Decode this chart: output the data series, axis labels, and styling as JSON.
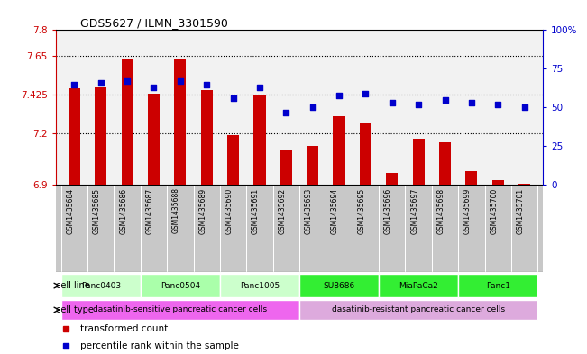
{
  "title": "GDS5627 / ILMN_3301590",
  "samples": [
    "GSM1435684",
    "GSM1435685",
    "GSM1435686",
    "GSM1435687",
    "GSM1435688",
    "GSM1435689",
    "GSM1435690",
    "GSM1435691",
    "GSM1435692",
    "GSM1435693",
    "GSM1435694",
    "GSM1435695",
    "GSM1435696",
    "GSM1435697",
    "GSM1435698",
    "GSM1435699",
    "GSM1435700",
    "GSM1435701"
  ],
  "transformed_count": [
    7.46,
    7.47,
    7.63,
    7.43,
    7.63,
    7.45,
    7.19,
    7.42,
    7.1,
    7.13,
    7.3,
    7.26,
    6.97,
    7.17,
    7.15,
    6.98,
    6.93,
    6.91
  ],
  "percentile_rank": [
    65,
    66,
    67,
    63,
    67,
    65,
    56,
    63,
    47,
    50,
    58,
    59,
    53,
    52,
    55,
    53,
    52,
    50
  ],
  "ylim_left": [
    6.9,
    7.8
  ],
  "ylim_right": [
    0,
    100
  ],
  "yticks_left": [
    6.9,
    7.2,
    7.425,
    7.65,
    7.8
  ],
  "yticks_left_labels": [
    "6.9",
    "7.2",
    "7.425",
    "7.65",
    "7.8"
  ],
  "yticks_right": [
    0,
    25,
    50,
    75,
    100
  ],
  "yticks_right_labels": [
    "0",
    "25",
    "50",
    "75",
    "100%"
  ],
  "bar_color": "#cc0000",
  "dot_color": "#0000cc",
  "cell_lines": [
    {
      "label": "Panc0403",
      "start": 0,
      "end": 2,
      "color": "#ccffcc"
    },
    {
      "label": "Panc0504",
      "start": 3,
      "end": 5,
      "color": "#aaffaa"
    },
    {
      "label": "Panc1005",
      "start": 6,
      "end": 8,
      "color": "#ccffcc"
    },
    {
      "label": "SU8686",
      "start": 9,
      "end": 11,
      "color": "#33ee33"
    },
    {
      "label": "MiaPaCa2",
      "start": 12,
      "end": 14,
      "color": "#33ee33"
    },
    {
      "label": "Panc1",
      "start": 15,
      "end": 17,
      "color": "#33ee33"
    }
  ],
  "cell_types": [
    {
      "label": "dasatinib-sensitive pancreatic cancer cells",
      "start": 0,
      "end": 8,
      "color": "#ee66ee"
    },
    {
      "label": "dasatinib-resistant pancreatic cancer cells",
      "start": 9,
      "end": 17,
      "color": "#ddaadd"
    }
  ],
  "legend_items": [
    {
      "label": "transformed count",
      "color": "#cc0000"
    },
    {
      "label": "percentile rank within the sample",
      "color": "#0000cc"
    }
  ],
  "bar_width": 0.45,
  "background_color": "#ffffff",
  "plot_bg": "#f2f2f2",
  "label_bg": "#c8c8c8"
}
